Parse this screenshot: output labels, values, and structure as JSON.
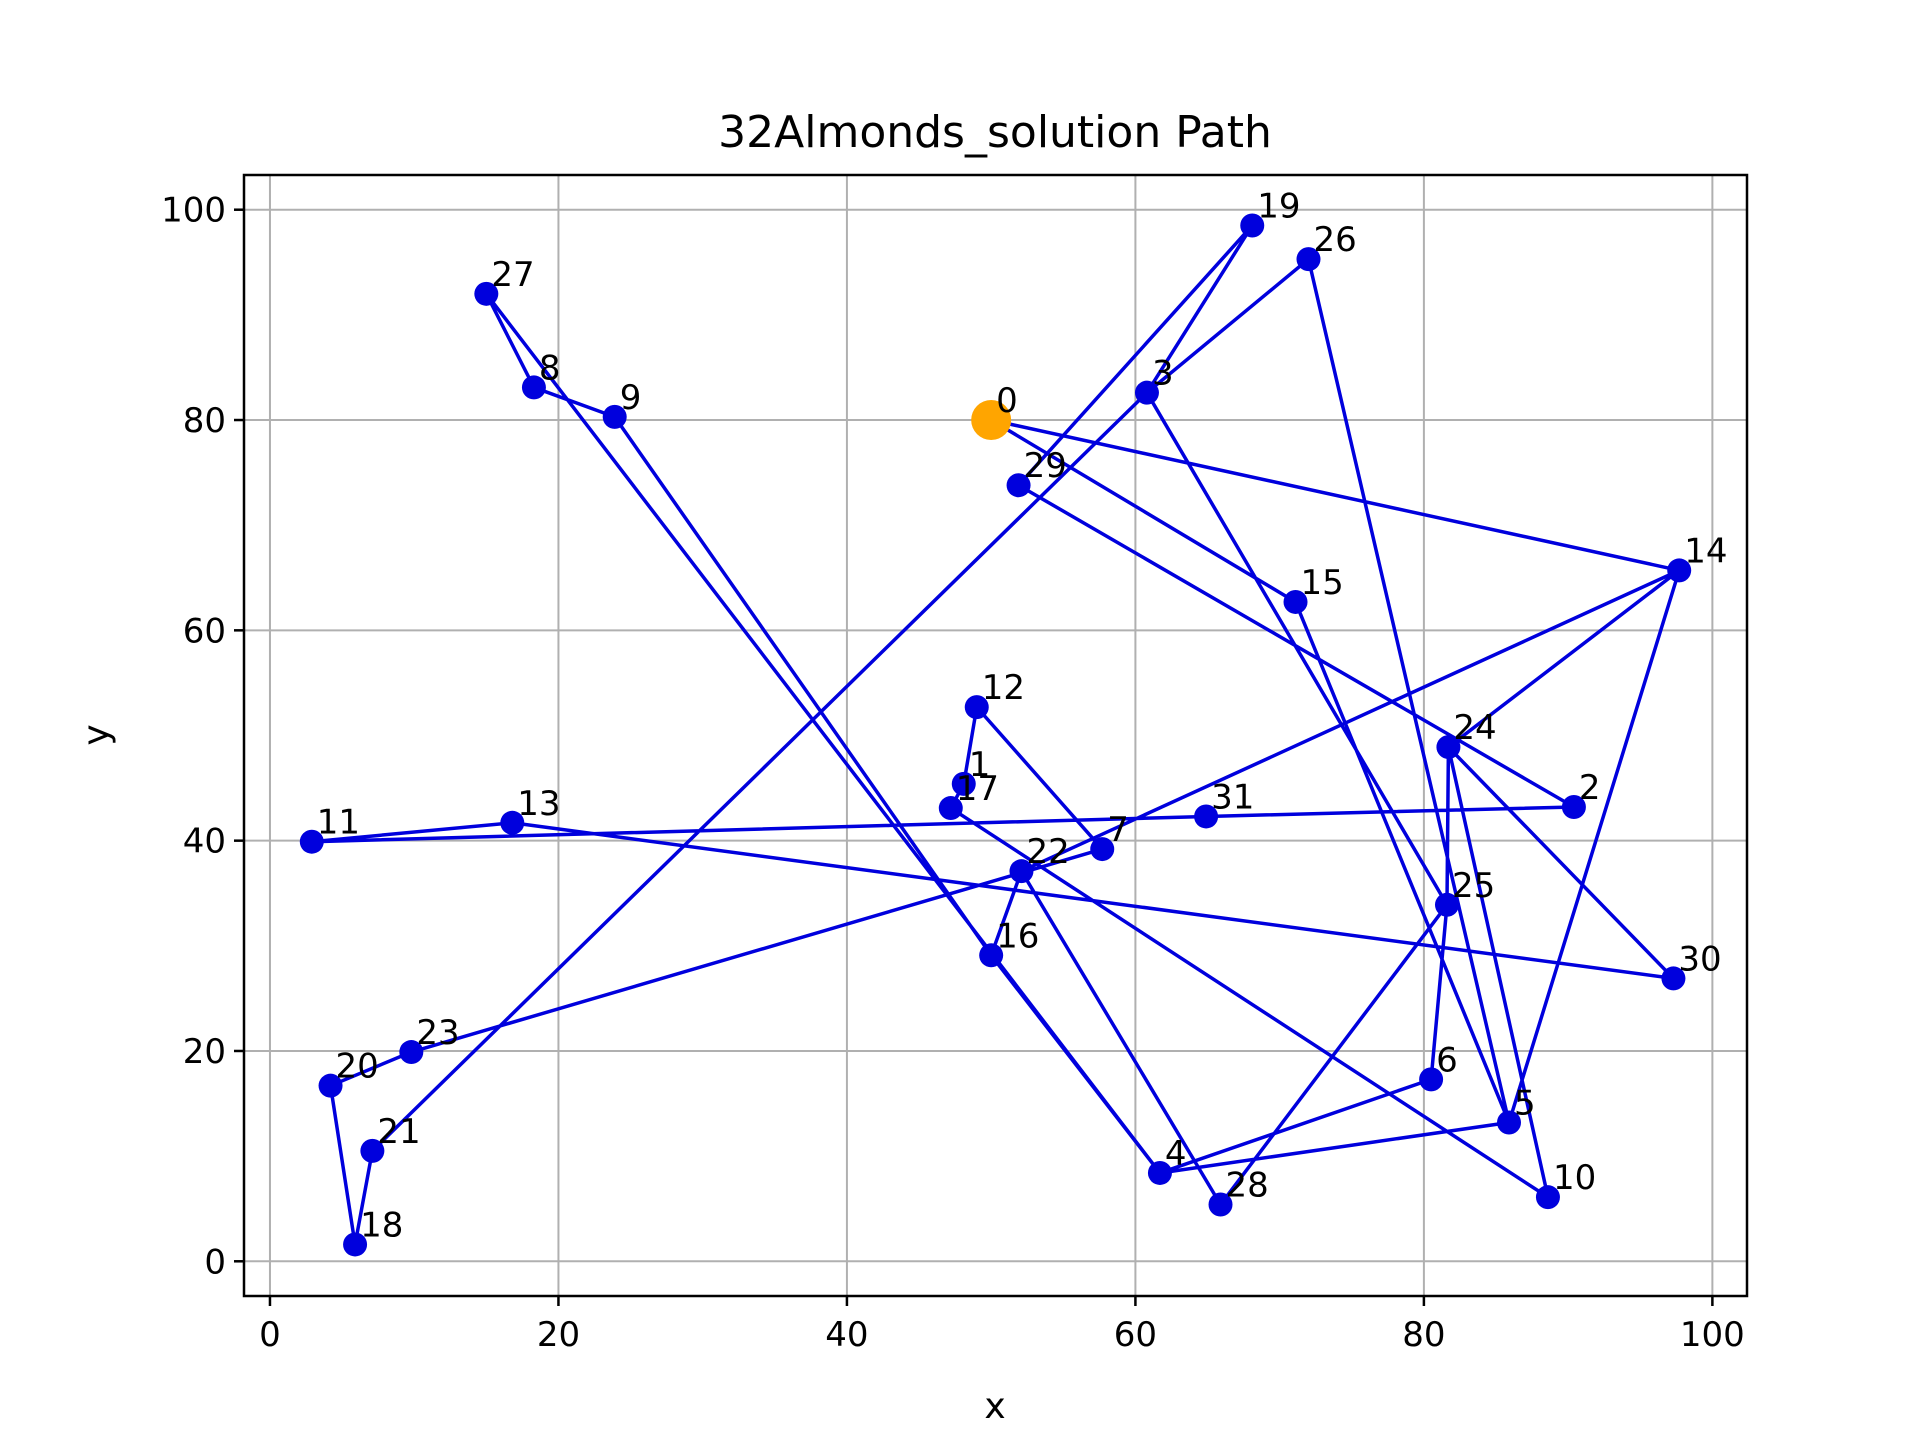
{
  "chart_data": {
    "type": "scatter",
    "title": "32Almonds_solution Path",
    "xlabel": "x",
    "ylabel": "y",
    "xlim": [
      -1.8,
      102.4
    ],
    "ylim": [
      -3.3,
      103.3
    ],
    "xticks": [
      0,
      20,
      40,
      60,
      80,
      100
    ],
    "yticks": [
      0,
      20,
      40,
      60,
      80,
      100
    ],
    "grid": true,
    "colors": {
      "path": "#0000dd",
      "points": "#0000dd",
      "start": "#ffa500"
    },
    "points": [
      {
        "label": "0",
        "x": 50.0,
        "y": 80.0
      },
      {
        "label": "1",
        "x": 48.1,
        "y": 45.4
      },
      {
        "label": "2",
        "x": 90.4,
        "y": 43.2
      },
      {
        "label": "3",
        "x": 60.8,
        "y": 82.6
      },
      {
        "label": "4",
        "x": 61.7,
        "y": 8.4
      },
      {
        "label": "5",
        "x": 85.9,
        "y": 13.2
      },
      {
        "label": "6",
        "x": 80.5,
        "y": 17.3
      },
      {
        "label": "7",
        "x": 57.7,
        "y": 39.2
      },
      {
        "label": "8",
        "x": 18.3,
        "y": 83.1
      },
      {
        "label": "9",
        "x": 23.9,
        "y": 80.3
      },
      {
        "label": "10",
        "x": 88.6,
        "y": 6.1
      },
      {
        "label": "11",
        "x": 2.9,
        "y": 39.9
      },
      {
        "label": "12",
        "x": 49.0,
        "y": 52.7
      },
      {
        "label": "13",
        "x": 16.8,
        "y": 41.7
      },
      {
        "label": "14",
        "x": 97.7,
        "y": 65.7
      },
      {
        "label": "15",
        "x": 71.1,
        "y": 62.7
      },
      {
        "label": "16",
        "x": 50.0,
        "y": 29.1
      },
      {
        "label": "17",
        "x": 47.2,
        "y": 43.1
      },
      {
        "label": "18",
        "x": 5.9,
        "y": 1.6
      },
      {
        "label": "19",
        "x": 68.1,
        "y": 98.5
      },
      {
        "label": "20",
        "x": 4.2,
        "y": 16.7
      },
      {
        "label": "21",
        "x": 7.1,
        "y": 10.5
      },
      {
        "label": "22",
        "x": 52.1,
        "y": 37.1
      },
      {
        "label": "23",
        "x": 9.8,
        "y": 19.9
      },
      {
        "label": "24",
        "x": 81.7,
        "y": 48.9
      },
      {
        "label": "25",
        "x": 81.6,
        "y": 33.9
      },
      {
        "label": "26",
        "x": 72.0,
        "y": 95.3
      },
      {
        "label": "27",
        "x": 15.0,
        "y": 92.0
      },
      {
        "label": "28",
        "x": 65.9,
        "y": 5.4
      },
      {
        "label": "29",
        "x": 51.9,
        "y": 73.8
      },
      {
        "label": "30",
        "x": 97.3,
        "y": 26.9
      },
      {
        "label": "31",
        "x": 64.9,
        "y": 42.3
      }
    ],
    "path_order": [
      0,
      15,
      5,
      26,
      3,
      21,
      18,
      20,
      23,
      7,
      12,
      1,
      17,
      10,
      24,
      30,
      13,
      11,
      31,
      2,
      29,
      19,
      3,
      25,
      6,
      4,
      27,
      8,
      9,
      16,
      22,
      28,
      25,
      24,
      14,
      5,
      4,
      16,
      22,
      14,
      0
    ],
    "start_label": "0"
  }
}
